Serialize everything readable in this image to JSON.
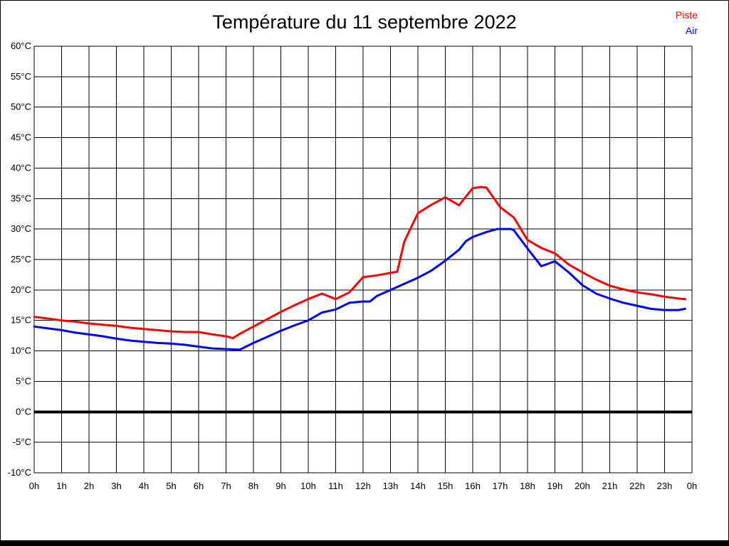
{
  "page": {
    "background": "#ffffff",
    "frame_color": "#000000"
  },
  "chart_data": {
    "type": "line",
    "title": "Température du 11 septembre 2022",
    "xlabel": "",
    "ylabel": "",
    "xlim": [
      0,
      24
    ],
    "ylim": [
      -10,
      60
    ],
    "grid": true,
    "legend_position": "top-right",
    "x_tick_labels": [
      "0h",
      "1h",
      "2h",
      "3h",
      "4h",
      "5h",
      "6h",
      "7h",
      "8h",
      "9h",
      "10h",
      "11h",
      "12h",
      "13h",
      "14h",
      "15h",
      "16h",
      "17h",
      "18h",
      "19h",
      "20h",
      "21h",
      "22h",
      "23h",
      "0h"
    ],
    "y_tick_values": [
      60,
      55,
      50,
      45,
      40,
      35,
      30,
      25,
      20,
      15,
      10,
      5,
      0,
      -5,
      -10
    ],
    "y_tick_labels": [
      "60°C",
      "55°C",
      "50°C",
      "45°C",
      "40°C",
      "35°C",
      "30°C",
      "25°C",
      "20°C",
      "15°C",
      "10°C",
      "5°C",
      "0°C",
      "-5°C",
      "-10°C"
    ],
    "zero_line": {
      "value": 0,
      "color": "#000000",
      "width": 4
    },
    "gridline_color": "#000000",
    "series": [
      {
        "name": "Piste",
        "color": "#ff0000",
        "points": [
          [
            0,
            15.6
          ],
          [
            0.5,
            15.3
          ],
          [
            1,
            15.0
          ],
          [
            1.5,
            14.8
          ],
          [
            2,
            14.5
          ],
          [
            2.5,
            14.3
          ],
          [
            3,
            14.1
          ],
          [
            3.5,
            13.8
          ],
          [
            4,
            13.6
          ],
          [
            4.5,
            13.4
          ],
          [
            5,
            13.2
          ],
          [
            5.5,
            13.1
          ],
          [
            6,
            13.1
          ],
          [
            6.5,
            12.7
          ],
          [
            7,
            12.4
          ],
          [
            7.25,
            12.1
          ],
          [
            7.5,
            12.8
          ],
          [
            8,
            14.0
          ],
          [
            8.5,
            15.2
          ],
          [
            9,
            16.4
          ],
          [
            9.5,
            17.5
          ],
          [
            10,
            18.5
          ],
          [
            10.5,
            19.4
          ],
          [
            11,
            18.5
          ],
          [
            11.5,
            19.6
          ],
          [
            12,
            22.1
          ],
          [
            12.5,
            22.4
          ],
          [
            13,
            22.8
          ],
          [
            13.25,
            23.0
          ],
          [
            13.5,
            27.9
          ],
          [
            14,
            32.6
          ],
          [
            14.5,
            34.0
          ],
          [
            15,
            35.2
          ],
          [
            15.5,
            33.9
          ],
          [
            16,
            36.7
          ],
          [
            16.3,
            36.9
          ],
          [
            16.5,
            36.8
          ],
          [
            17,
            33.6
          ],
          [
            17.5,
            31.9
          ],
          [
            18,
            28.2
          ],
          [
            18.5,
            26.9
          ],
          [
            19,
            26.0
          ],
          [
            19.5,
            24.2
          ],
          [
            20,
            22.9
          ],
          [
            20.5,
            21.7
          ],
          [
            21,
            20.7
          ],
          [
            21.5,
            20.1
          ],
          [
            22,
            19.6
          ],
          [
            22.5,
            19.3
          ],
          [
            23,
            18.9
          ],
          [
            23.5,
            18.6
          ],
          [
            23.75,
            18.5
          ]
        ]
      },
      {
        "name": "Air",
        "color": "#0000ff",
        "points": [
          [
            0,
            14.0
          ],
          [
            0.5,
            13.7
          ],
          [
            1,
            13.4
          ],
          [
            1.5,
            13.0
          ],
          [
            2,
            12.7
          ],
          [
            2.5,
            12.4
          ],
          [
            3,
            12.0
          ],
          [
            3.5,
            11.7
          ],
          [
            4,
            11.5
          ],
          [
            4.5,
            11.3
          ],
          [
            5,
            11.2
          ],
          [
            5.5,
            11.0
          ],
          [
            6,
            10.7
          ],
          [
            6.5,
            10.4
          ],
          [
            7,
            10.3
          ],
          [
            7.5,
            10.2
          ],
          [
            8,
            11.3
          ],
          [
            8.5,
            12.3
          ],
          [
            9,
            13.3
          ],
          [
            9.5,
            14.2
          ],
          [
            10,
            15.0
          ],
          [
            10.5,
            16.3
          ],
          [
            11,
            16.8
          ],
          [
            11.5,
            17.9
          ],
          [
            12,
            18.1
          ],
          [
            12.25,
            18.1
          ],
          [
            12.5,
            19.0
          ],
          [
            13,
            20.0
          ],
          [
            13.5,
            21.0
          ],
          [
            14,
            22.0
          ],
          [
            14.5,
            23.2
          ],
          [
            15,
            24.8
          ],
          [
            15.5,
            26.6
          ],
          [
            15.75,
            28.0
          ],
          [
            16,
            28.7
          ],
          [
            16.5,
            29.5
          ],
          [
            16.9,
            30.0
          ],
          [
            17.4,
            30.0
          ],
          [
            17.5,
            29.8
          ],
          [
            18,
            26.8
          ],
          [
            18.5,
            23.9
          ],
          [
            19,
            24.7
          ],
          [
            19.5,
            22.9
          ],
          [
            20,
            20.8
          ],
          [
            20.5,
            19.4
          ],
          [
            21,
            18.6
          ],
          [
            21.5,
            17.9
          ],
          [
            22,
            17.4
          ],
          [
            22.5,
            16.9
          ],
          [
            23,
            16.7
          ],
          [
            23.5,
            16.7
          ],
          [
            23.75,
            16.9
          ]
        ]
      }
    ]
  }
}
